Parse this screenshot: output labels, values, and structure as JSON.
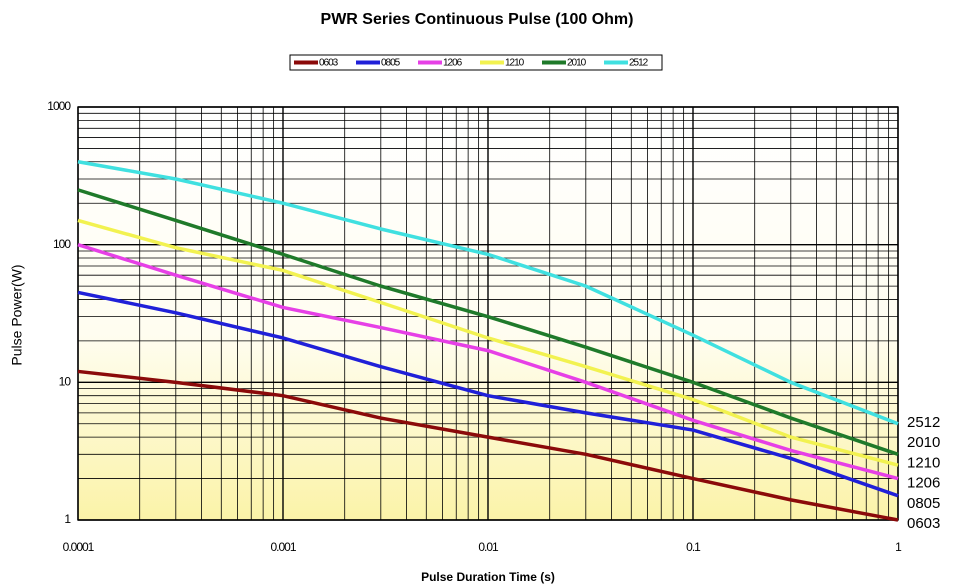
{
  "chart_data": {
    "type": "line",
    "title": "PWR Series Continuous Pulse (100 Ohm)",
    "x_label": "Pulse Duration Time (s)",
    "y_label": "Pulse Power(W)",
    "x": [
      0.0001,
      0.0003,
      0.001,
      0.003,
      0.01,
      0.03,
      0.1,
      0.3,
      1
    ],
    "series": [
      {
        "name": "0603",
        "color": "#8b0a0a",
        "values": [
          12,
          10,
          8,
          5.5,
          4,
          3,
          2,
          1.4,
          1
        ]
      },
      {
        "name": "0805",
        "color": "#2020d8",
        "values": [
          45,
          32,
          21,
          13,
          8,
          6,
          4.5,
          2.8,
          1.5
        ]
      },
      {
        "name": "1206",
        "color": "#e640e6",
        "values": [
          100,
          60,
          35,
          25,
          17,
          10,
          5.3,
          3.2,
          2
        ]
      },
      {
        "name": "1210",
        "color": "#f2f250",
        "values": [
          150,
          95,
          65,
          38,
          21,
          13,
          7.5,
          4,
          2.5
        ]
      },
      {
        "name": "2010",
        "color": "#1f7a2a",
        "values": [
          250,
          150,
          85,
          50,
          30,
          18,
          10,
          5.5,
          3
        ]
      },
      {
        "name": "2512",
        "color": "#40e0e0",
        "values": [
          400,
          300,
          200,
          130,
          85,
          50,
          22,
          10,
          5
        ]
      }
    ],
    "xlim": [
      0.0001,
      1
    ],
    "xticks": [
      0.0001,
      0.001,
      0.01,
      0.1,
      1
    ],
    "ylim": [
      1,
      1000
    ],
    "yticks": [
      1,
      10,
      100,
      1000
    ],
    "xscale": "log",
    "yscale": "log",
    "grid": true,
    "minor_grid": true,
    "legend": "top"
  }
}
